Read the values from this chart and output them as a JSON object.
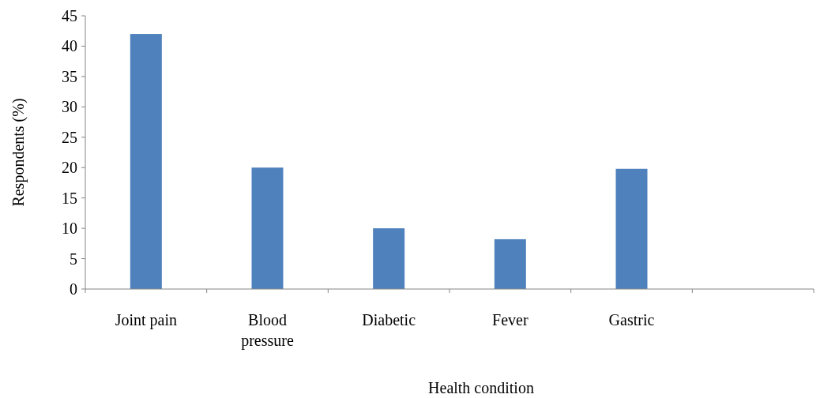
{
  "chart_data": {
    "type": "bar",
    "xlabel": "Health condition",
    "ylabel": "Respondents (%)",
    "categories": [
      "Joint pain",
      "Blood pressure",
      "Diabetic",
      "Fever",
      "Gastric",
      null
    ],
    "values": [
      42,
      20,
      10,
      8.2,
      19.8,
      null
    ],
    "color": "#4f81bd",
    "ylim": [
      0,
      45
    ],
    "yticks": [
      0,
      5,
      10,
      15,
      20,
      25,
      30,
      35,
      40,
      45
    ]
  }
}
